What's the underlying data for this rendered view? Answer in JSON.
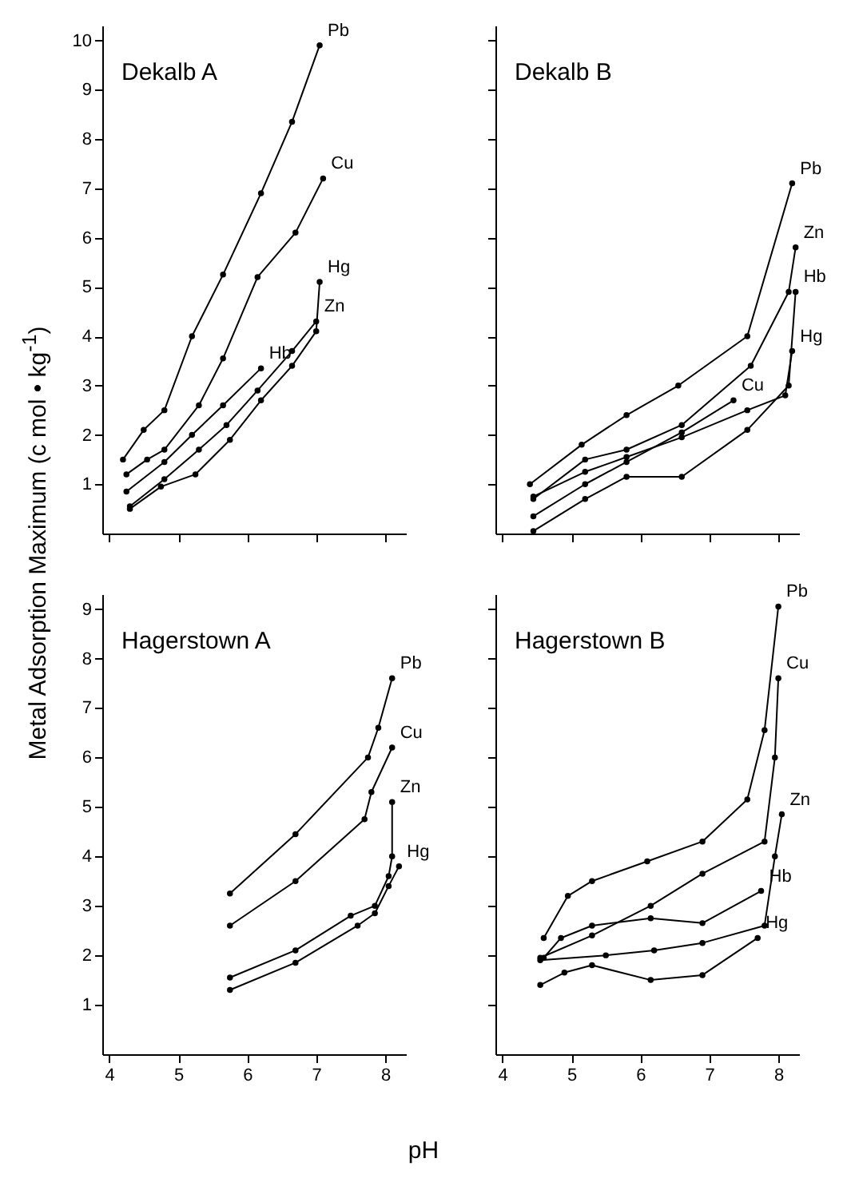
{
  "chart_data": [
    {
      "type": "line",
      "title": "Dekalb A",
      "ylabel": "Metal Adsorption Maximum (c mol • kg$^{-1}$)",
      "xlim": [
        3.9,
        8.3
      ],
      "xticks": [
        4,
        5,
        6,
        7,
        8
      ],
      "ylim": [
        0,
        10.3
      ],
      "yticks": [
        1,
        2,
        3,
        4,
        5,
        6,
        7,
        8,
        9,
        10
      ],
      "tick_labels": "y",
      "marker": "circle",
      "series": [
        {
          "name": "Pb",
          "color": "#000000",
          "x": [
            4.2,
            4.5,
            4.8,
            5.2,
            5.65,
            6.2,
            6.65,
            7.05
          ],
          "values": [
            1.5,
            2.1,
            2.5,
            4.0,
            5.25,
            6.9,
            8.35,
            9.9
          ]
        },
        {
          "name": "Cu",
          "color": "#000000",
          "x": [
            4.25,
            4.55,
            4.8,
            5.3,
            5.65,
            6.15,
            6.7,
            7.1
          ],
          "values": [
            1.2,
            1.5,
            1.7,
            2.6,
            3.55,
            5.2,
            6.1,
            7.2
          ]
        },
        {
          "name": "Hg",
          "color": "#000000",
          "x": [
            4.3,
            4.75,
            5.25,
            5.75,
            6.2,
            6.65,
            7.0,
            7.05
          ],
          "values": [
            0.5,
            0.95,
            1.2,
            1.9,
            2.7,
            3.4,
            4.1,
            5.1
          ]
        },
        {
          "name": "Zn",
          "color": "#000000",
          "x": [
            4.3,
            4.8,
            5.3,
            5.7,
            6.15,
            6.65,
            7.0
          ],
          "values": [
            0.55,
            1.1,
            1.7,
            2.2,
            2.9,
            3.7,
            4.3
          ]
        },
        {
          "name": "Hb",
          "color": "#000000",
          "x": [
            4.25,
            4.8,
            5.2,
            5.65,
            6.2
          ],
          "values": [
            0.85,
            1.45,
            2.0,
            2.6,
            3.35
          ]
        }
      ]
    },
    {
      "type": "line",
      "title": "Dekalb B",
      "xlim": [
        3.9,
        8.3
      ],
      "xticks": [
        4,
        5,
        6,
        7,
        8
      ],
      "ylim": [
        0,
        10.3
      ],
      "yticks": [
        1,
        2,
        3,
        4,
        5,
        6,
        7,
        8,
        9,
        10
      ],
      "tick_labels": false,
      "marker": "circle",
      "series": [
        {
          "name": "Pb",
          "color": "#000000",
          "x": [
            4.4,
            5.15,
            5.8,
            6.55,
            7.55,
            8.2
          ],
          "values": [
            1.0,
            1.8,
            2.4,
            3.0,
            4.0,
            7.1
          ]
        },
        {
          "name": "Zn",
          "color": "#000000",
          "x": [
            4.45,
            5.2,
            5.8,
            6.6,
            7.6,
            8.15,
            8.25
          ],
          "values": [
            0.7,
            1.5,
            1.7,
            2.2,
            3.4,
            4.9,
            5.8
          ]
        },
        {
          "name": "Hb",
          "color": "#000000",
          "x": [
            4.45,
            5.2,
            5.8,
            6.6,
            7.55,
            8.15,
            8.25
          ],
          "values": [
            0.05,
            0.7,
            1.15,
            1.15,
            2.1,
            3.0,
            4.9
          ]
        },
        {
          "name": "Cu",
          "color": "#000000",
          "x": [
            4.45,
            5.2,
            5.8,
            6.6,
            7.35
          ],
          "values": [
            0.35,
            1.0,
            1.45,
            2.05,
            2.7
          ]
        },
        {
          "name": "Hg",
          "color": "#000000",
          "x": [
            4.45,
            5.2,
            5.8,
            6.6,
            7.55,
            8.1,
            8.2
          ],
          "values": [
            0.75,
            1.25,
            1.55,
            1.95,
            2.5,
            2.8,
            3.7
          ]
        }
      ]
    },
    {
      "type": "line",
      "title": "Hagerstown A",
      "xlabel": "pH",
      "xlim": [
        3.9,
        8.3
      ],
      "xticks": [
        4,
        5,
        6,
        7,
        8
      ],
      "ylim": [
        0,
        9.3
      ],
      "yticks": [
        1,
        2,
        3,
        4,
        5,
        6,
        7,
        8,
        9
      ],
      "marker": "circle",
      "series": [
        {
          "name": "Pb",
          "color": "#000000",
          "x": [
            5.75,
            6.7,
            7.75,
            7.9,
            8.1
          ],
          "values": [
            3.25,
            4.45,
            6.0,
            6.6,
            7.6
          ]
        },
        {
          "name": "Cu",
          "color": "#000000",
          "x": [
            5.75,
            6.7,
            7.7,
            7.8,
            8.1
          ],
          "values": [
            2.6,
            3.5,
            4.75,
            5.3,
            6.2
          ]
        },
        {
          "name": "Zn",
          "color": "#000000",
          "x": [
            5.75,
            6.7,
            7.5,
            7.85,
            8.05,
            8.1,
            8.1
          ],
          "values": [
            1.55,
            2.1,
            2.8,
            3.0,
            3.6,
            4.0,
            5.1
          ]
        },
        {
          "name": "Hg",
          "color": "#000000",
          "x": [
            5.75,
            6.7,
            7.6,
            7.85,
            8.05,
            8.2
          ],
          "values": [
            1.3,
            1.85,
            2.6,
            2.85,
            3.4,
            3.8
          ]
        }
      ]
    },
    {
      "type": "line",
      "title": "Hagerstown B",
      "xlim": [
        3.9,
        8.3
      ],
      "xticks": [
        4,
        5,
        6,
        7,
        8
      ],
      "ylim": [
        0,
        9.3
      ],
      "yticks": [
        1,
        2,
        3,
        4,
        5,
        6,
        7,
        8,
        9
      ],
      "tick_labels": "x",
      "marker": "circle",
      "series": [
        {
          "name": "Pb",
          "color": "#000000",
          "x": [
            4.6,
            4.95,
            5.3,
            6.1,
            6.9,
            7.55,
            7.8,
            8.0
          ],
          "values": [
            2.35,
            3.2,
            3.5,
            3.9,
            4.3,
            5.15,
            6.55,
            9.05
          ]
        },
        {
          "name": "Cu",
          "color": "#000000",
          "x": [
            4.55,
            5.3,
            6.15,
            6.9,
            7.8,
            7.95,
            8.0
          ],
          "values": [
            1.95,
            2.4,
            3.0,
            3.65,
            4.3,
            6.0,
            7.6
          ]
        },
        {
          "name": "Zn",
          "color": "#000000",
          "x": [
            4.55,
            5.5,
            6.2,
            6.9,
            7.8,
            7.95,
            8.05
          ],
          "values": [
            1.9,
            2.0,
            2.1,
            2.25,
            2.6,
            4.0,
            4.85
          ]
        },
        {
          "name": "Hb",
          "color": "#000000",
          "x": [
            4.6,
            4.85,
            5.3,
            6.15,
            6.9,
            7.75
          ],
          "values": [
            1.95,
            2.35,
            2.6,
            2.75,
            2.65,
            3.3
          ]
        },
        {
          "name": "Hg",
          "color": "#000000",
          "x": [
            4.55,
            4.9,
            5.3,
            6.15,
            6.9,
            7.7
          ],
          "values": [
            1.4,
            1.65,
            1.8,
            1.5,
            1.6,
            2.35
          ]
        }
      ]
    }
  ]
}
